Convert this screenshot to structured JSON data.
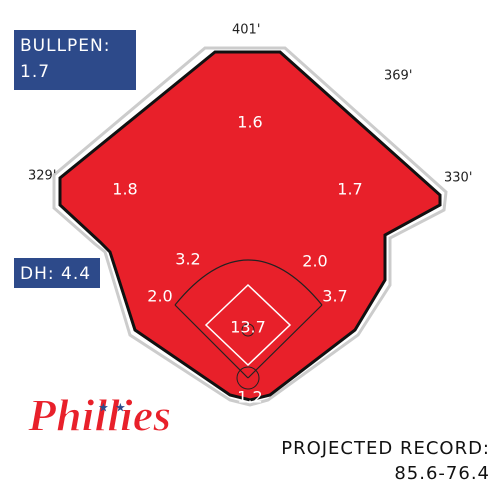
{
  "bullpen": {
    "label": "BULLPEN:",
    "value": "1.7"
  },
  "dimensions": {
    "center": "401'",
    "right_center": "369'",
    "left": "329'",
    "right": "330'"
  },
  "positions": {
    "cf": "1.6",
    "lf": "1.8",
    "rf": "1.7",
    "ss": "3.2",
    "second": "2.0",
    "third": "2.0",
    "first": "3.7",
    "sp": "13.7",
    "c": "1.2"
  },
  "dh": "DH: 4.4",
  "team": "Phillies",
  "record": {
    "label": "PROJECTED RECORD:",
    "value": "85.6-76.4"
  }
}
